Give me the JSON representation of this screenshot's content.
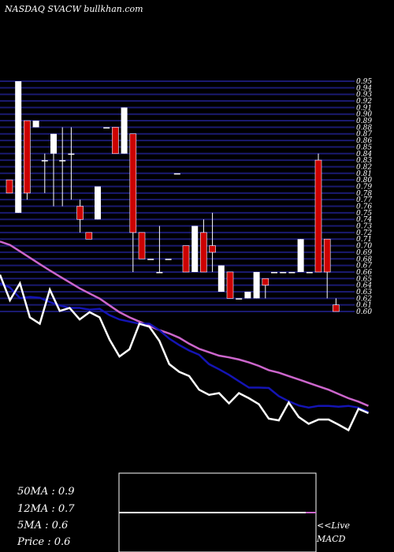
{
  "header": "NASDAQ SVACW bullkhan.com",
  "legend": {
    "ma50": "50MA : 0.9",
    "ma12": "12MA : 0.7",
    "ma5": "5MA : 0.6",
    "price": "Price   : 0.6"
  },
  "live_label": "<<Live",
  "macd_label": "MACD",
  "colors": {
    "background": "#000000",
    "grid": "#1a1a70",
    "up": "#ffffff",
    "down": "#cc0000",
    "ma_long": "#cc66cc",
    "ma_mid": "#1414b4",
    "ma_short": "#ffffff"
  },
  "chart_data": {
    "type": "candlestick",
    "price_scale_labels": [
      "0.95",
      "0.94",
      "0.93",
      "0.92",
      "0.91",
      "0.90",
      "0.89",
      "0.88",
      "0.87",
      "0.86",
      "0.85",
      "0.84",
      "0.83",
      "0.82",
      "0.81",
      "0.80",
      "0.79",
      "0.78",
      "0.77",
      "0.76",
      "0.75",
      "0.74",
      "0.73",
      "0.72",
      "0.71",
      "0.70",
      "0.69",
      "0.68",
      "0.67",
      "0.66",
      "0.65",
      "0.64",
      "0.63",
      "0.62",
      "0.61",
      "0.60"
    ],
    "ylim": [
      0.6,
      0.95
    ],
    "candles": [
      {
        "o": 0.8,
        "h": 0.8,
        "l": 0.78,
        "c": 0.78
      },
      {
        "o": 0.75,
        "h": 0.95,
        "l": 0.75,
        "c": 0.95
      },
      {
        "o": 0.89,
        "h": 0.89,
        "l": 0.77,
        "c": 0.78
      },
      {
        "o": 0.88,
        "h": 0.89,
        "l": 0.88,
        "c": 0.89
      },
      {
        "o": 0.83,
        "h": 0.84,
        "l": 0.78,
        "c": 0.83
      },
      {
        "o": 0.84,
        "h": 0.87,
        "l": 0.76,
        "c": 0.87
      },
      {
        "o": 0.83,
        "h": 0.88,
        "l": 0.76,
        "c": 0.83
      },
      {
        "o": 0.84,
        "h": 0.88,
        "l": 0.77,
        "c": 0.84
      },
      {
        "o": 0.76,
        "h": 0.77,
        "l": 0.72,
        "c": 0.74
      },
      {
        "o": 0.72,
        "h": 0.72,
        "l": 0.71,
        "c": 0.71
      },
      {
        "o": 0.74,
        "h": 0.79,
        "l": 0.74,
        "c": 0.79
      },
      {
        "o": 0.88,
        "h": 0.88,
        "l": 0.88,
        "c": 0.88
      },
      {
        "o": 0.88,
        "h": 0.88,
        "l": 0.84,
        "c": 0.84
      },
      {
        "o": 0.84,
        "h": 0.91,
        "l": 0.84,
        "c": 0.91
      },
      {
        "o": 0.87,
        "h": 0.87,
        "l": 0.66,
        "c": 0.72
      },
      {
        "o": 0.72,
        "h": 0.72,
        "l": 0.68,
        "c": 0.68
      },
      {
        "o": 0.68,
        "h": 0.68,
        "l": 0.68,
        "c": 0.68
      },
      {
        "o": 0.66,
        "h": 0.73,
        "l": 0.66,
        "c": 0.66
      },
      {
        "o": 0.68,
        "h": 0.68,
        "l": 0.68,
        "c": 0.68
      },
      {
        "o": 0.81,
        "h": 0.81,
        "l": 0.81,
        "c": 0.81
      },
      {
        "o": 0.7,
        "h": 0.7,
        "l": 0.66,
        "c": 0.66
      },
      {
        "o": 0.66,
        "h": 0.73,
        "l": 0.66,
        "c": 0.73
      },
      {
        "o": 0.72,
        "h": 0.74,
        "l": 0.66,
        "c": 0.66
      },
      {
        "o": 0.7,
        "h": 0.75,
        "l": 0.66,
        "c": 0.69
      },
      {
        "o": 0.63,
        "h": 0.67,
        "l": 0.63,
        "c": 0.67
      },
      {
        "o": 0.66,
        "h": 0.66,
        "l": 0.62,
        "c": 0.62
      },
      {
        "o": 0.62,
        "h": 0.62,
        "l": 0.62,
        "c": 0.62
      },
      {
        "o": 0.62,
        "h": 0.63,
        "l": 0.62,
        "c": 0.63
      },
      {
        "o": 0.62,
        "h": 0.66,
        "l": 0.62,
        "c": 0.66
      },
      {
        "o": 0.65,
        "h": 0.65,
        "l": 0.62,
        "c": 0.64
      },
      {
        "o": 0.66,
        "h": 0.66,
        "l": 0.66,
        "c": 0.66
      },
      {
        "o": 0.66,
        "h": 0.66,
        "l": 0.66,
        "c": 0.66
      },
      {
        "o": 0.66,
        "h": 0.66,
        "l": 0.66,
        "c": 0.66
      },
      {
        "o": 0.66,
        "h": 0.71,
        "l": 0.66,
        "c": 0.71
      },
      {
        "o": 0.66,
        "h": 0.66,
        "l": 0.66,
        "c": 0.66
      },
      {
        "o": 0.83,
        "h": 0.84,
        "l": 0.66,
        "c": 0.66
      },
      {
        "o": 0.71,
        "h": 0.71,
        "l": 0.62,
        "c": 0.66
      },
      {
        "o": 0.61,
        "h": 0.62,
        "l": 0.6,
        "c": 0.6
      }
    ],
    "ma_long_line": [
      0.618,
      0.61,
      0.595,
      0.58,
      0.565,
      0.55,
      0.536,
      0.522,
      0.508,
      0.496,
      0.484,
      0.468,
      0.452,
      0.44,
      0.43,
      0.42,
      0.41,
      0.402,
      0.392,
      0.378,
      0.366,
      0.358,
      0.35,
      0.346,
      0.341,
      0.334,
      0.326,
      0.316,
      0.31,
      0.302,
      0.294,
      0.286,
      0.278,
      0.27,
      0.26,
      0.25,
      0.242,
      0.232
    ],
    "ma_mid_line": [
      0.52,
      0.51,
      0.485,
      0.488,
      0.486,
      0.476,
      0.468,
      0.462,
      0.462,
      0.458,
      0.46,
      0.445,
      0.435,
      0.43,
      0.425,
      0.425,
      0.41,
      0.39,
      0.375,
      0.362,
      0.352,
      0.33,
      0.318,
      0.305,
      0.29,
      0.275,
      0.275,
      0.274,
      0.255,
      0.243,
      0.233,
      0.228,
      0.232,
      0.232,
      0.23,
      0.232,
      0.228,
      0.218
    ],
    "ma_short_line": [
      0.54,
      0.48,
      0.52,
      0.44,
      0.425,
      0.505,
      0.455,
      0.462,
      0.435,
      0.452,
      0.44,
      0.388,
      0.348,
      0.365,
      0.425,
      0.418,
      0.385,
      0.33,
      0.312,
      0.302,
      0.27,
      0.258,
      0.262,
      0.238,
      0.262,
      0.25,
      0.236,
      0.202,
      0.198,
      0.24,
      0.206,
      0.19,
      0.2,
      0.2,
      0.188,
      0.175,
      0.225,
      0.215
    ]
  }
}
